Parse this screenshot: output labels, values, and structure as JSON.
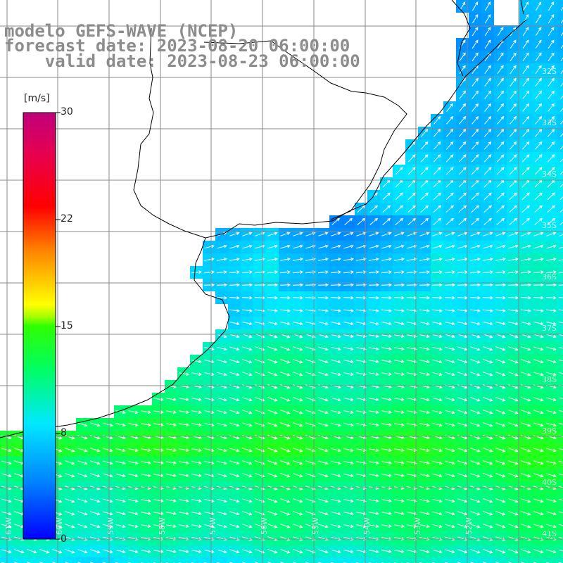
{
  "title": {
    "line1": "modelo GEFS-WAVE (NCEP)",
    "line2": "forecast date: 2023-08-20 06:00:00",
    "line3": "    valid date: 2023-08-23 06:00:00"
  },
  "colorbar": {
    "unit": "[m/s]",
    "ticks": [
      "30",
      "22",
      "15",
      "8",
      "0"
    ],
    "colors": [
      "#0000ff",
      "#0080ff",
      "#00d8ff",
      "#00ff40",
      "#40ff00",
      "#ffff00",
      "#ff8000",
      "#ff0000",
      "#c8007a"
    ]
  },
  "lat_labels": [
    "32S",
    "33S",
    "34S",
    "35S",
    "36S",
    "37S",
    "38S",
    "39S",
    "40S",
    "41S"
  ],
  "lon_labels": [
    "61W",
    "60W",
    "59W",
    "58W",
    "57W",
    "56W",
    "55W",
    "54W",
    "53W",
    "52W"
  ],
  "colors": {
    "land": "#ffffff",
    "grid": "#888888",
    "coast": "#000000",
    "arrow": "#ffffff",
    "title": "#8c8c8c"
  }
}
